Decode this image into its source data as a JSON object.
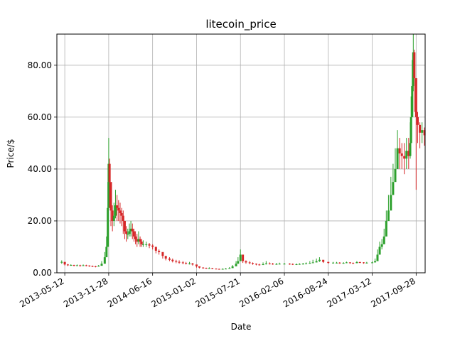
{
  "chart_data": {
    "type": "candlestick",
    "title": "litecoin_price",
    "xlabel": "Date",
    "ylabel": "Price/$",
    "ylim": [
      0,
      92
    ],
    "y_ticks": [
      0,
      20,
      40,
      60,
      80
    ],
    "y_tick_labels": [
      "0.00",
      "20.00",
      "40.00",
      "60.00",
      "80.00"
    ],
    "x_ticks": [
      "2013-05-12",
      "2013-11-28",
      "2014-06-16",
      "2015-01-02",
      "2015-07-21",
      "2016-02-06",
      "2016-08-24",
      "2017-03-12",
      "2017-09-28"
    ],
    "x_range": [
      "2013-04-06",
      "2017-11-08"
    ],
    "grid": true,
    "colors": {
      "up": "#2ca02c",
      "down": "#d62728"
    },
    "series": [
      {
        "x": [
          "2013-04-28",
          "2013-05-12",
          "2013-05-26",
          "2013-06-09",
          "2013-06-23",
          "2013-07-07",
          "2013-07-21",
          "2013-08-04",
          "2013-08-18",
          "2013-09-01",
          "2013-09-15",
          "2013-09-29",
          "2013-10-13",
          "2013-10-27",
          "2013-11-10",
          "2013-11-18",
          "2013-11-24",
          "2013-11-28",
          "2013-12-02",
          "2013-12-08",
          "2013-12-15",
          "2013-12-22",
          "2013-12-29",
          "2014-01-05",
          "2014-01-12",
          "2014-01-19",
          "2014-01-26",
          "2014-02-02",
          "2014-02-09",
          "2014-02-16",
          "2014-02-23",
          "2014-03-02",
          "2014-03-09",
          "2014-03-16",
          "2014-03-23",
          "2014-03-30",
          "2014-04-06",
          "2014-04-13",
          "2014-04-20",
          "2014-04-27",
          "2014-05-04",
          "2014-05-18",
          "2014-06-01",
          "2014-06-16",
          "2014-07-01",
          "2014-07-15",
          "2014-08-01",
          "2014-08-15",
          "2014-09-01",
          "2014-09-15",
          "2014-10-01",
          "2014-10-15",
          "2014-11-01",
          "2014-11-15",
          "2014-12-01",
          "2014-12-15",
          "2015-01-02",
          "2015-01-15",
          "2015-02-01",
          "2015-02-15",
          "2015-03-01",
          "2015-03-15",
          "2015-04-01",
          "2015-04-15",
          "2015-05-01",
          "2015-05-15",
          "2015-06-01",
          "2015-06-15",
          "2015-07-01",
          "2015-07-10",
          "2015-07-21",
          "2015-08-01",
          "2015-08-15",
          "2015-09-01",
          "2015-09-15",
          "2015-10-01",
          "2015-10-15",
          "2015-11-01",
          "2015-11-15",
          "2015-12-01",
          "2015-12-15",
          "2016-01-01",
          "2016-01-15",
          "2016-02-06",
          "2016-03-01",
          "2016-03-15",
          "2016-04-01",
          "2016-04-15",
          "2016-05-01",
          "2016-05-15",
          "2016-06-01",
          "2016-06-15",
          "2016-07-01",
          "2016-07-15",
          "2016-08-01",
          "2016-08-24",
          "2016-09-15",
          "2016-10-01",
          "2016-10-15",
          "2016-11-01",
          "2016-11-15",
          "2016-12-01",
          "2016-12-15",
          "2017-01-01",
          "2017-01-15",
          "2017-02-01",
          "2017-02-15",
          "2017-03-12",
          "2017-03-25",
          "2017-04-05",
          "2017-04-15",
          "2017-04-25",
          "2017-05-05",
          "2017-05-15",
          "2017-05-25",
          "2017-06-05",
          "2017-06-15",
          "2017-06-25",
          "2017-07-05",
          "2017-07-15",
          "2017-07-25",
          "2017-08-05",
          "2017-08-15",
          "2017-08-25",
          "2017-09-01",
          "2017-09-05",
          "2017-09-10",
          "2017-09-15",
          "2017-09-20",
          "2017-09-28",
          "2017-10-05",
          "2017-10-15",
          "2017-10-25",
          "2017-11-05"
        ],
        "close": [
          4.2,
          3.2,
          2.9,
          3.0,
          2.8,
          2.9,
          2.7,
          2.9,
          2.8,
          2.6,
          2.5,
          2.4,
          2.7,
          3.5,
          6.0,
          10.0,
          25.0,
          42.0,
          35.0,
          24.0,
          20.0,
          22.0,
          26.0,
          25.0,
          24.0,
          23.0,
          22.0,
          20.0,
          16.0,
          15.0,
          15.0,
          16.0,
          17.0,
          16.0,
          14.0,
          13.0,
          12.0,
          13.0,
          12.0,
          11.0,
          11.0,
          11.0,
          10.5,
          10.0,
          8.5,
          8.0,
          6.5,
          5.5,
          5.0,
          4.5,
          4.2,
          4.0,
          3.8,
          3.6,
          3.6,
          3.2,
          2.5,
          2.0,
          1.9,
          1.7,
          1.8,
          1.6,
          1.5,
          1.4,
          1.5,
          1.6,
          1.8,
          2.5,
          3.5,
          4.5,
          7.0,
          4.5,
          4.0,
          3.8,
          3.5,
          3.2,
          3.0,
          3.3,
          3.6,
          3.5,
          3.4,
          3.4,
          3.5,
          3.5,
          3.4,
          3.3,
          3.3,
          3.4,
          3.5,
          3.6,
          3.8,
          4.0,
          4.5,
          5.0,
          4.2,
          3.8,
          3.9,
          3.9,
          3.8,
          3.8,
          4.0,
          3.8,
          3.7,
          4.1,
          4.0,
          3.8,
          3.9,
          4.0,
          4.5,
          7.0,
          10.0,
          11.0,
          14.0,
          20.0,
          24.0,
          30.0,
          35.0,
          40.0,
          48.0,
          46.0,
          45.0,
          44.0,
          47.0,
          45.0,
          50.0,
          60.0,
          72.0,
          85.0,
          75.0,
          60.0,
          57.0,
          54.0,
          55.0,
          53.0
        ],
        "high": [
          4.8,
          3.8,
          3.4,
          3.3,
          3.1,
          3.2,
          3.1,
          3.2,
          3.1,
          2.9,
          2.8,
          2.7,
          3.0,
          4.5,
          8.0,
          14.0,
          35.0,
          52.0,
          44.0,
          32.0,
          26.0,
          27.0,
          32.0,
          30.0,
          28.0,
          27.0,
          25.0,
          24.0,
          19.0,
          18.0,
          17.0,
          19.0,
          20.0,
          19.0,
          17.0,
          16.0,
          15.0,
          16.0,
          14.0,
          13.0,
          12.5,
          12.0,
          11.5,
          11.0,
          9.5,
          9.0,
          7.5,
          6.5,
          6.0,
          5.5,
          5.0,
          4.8,
          4.5,
          4.2,
          4.2,
          3.8,
          3.0,
          2.4,
          2.2,
          2.0,
          2.1,
          1.9,
          1.7,
          1.6,
          1.7,
          1.8,
          2.2,
          3.0,
          4.5,
          6.0,
          9.0,
          5.5,
          4.8,
          4.5,
          4.0,
          3.6,
          3.5,
          4.0,
          4.5,
          4.0,
          3.8,
          3.8,
          3.9,
          3.8,
          3.7,
          3.6,
          3.6,
          3.7,
          3.8,
          4.0,
          4.5,
          5.0,
          5.5,
          6.0,
          4.8,
          4.2,
          4.2,
          4.2,
          4.1,
          4.1,
          4.3,
          4.1,
          4.0,
          4.5,
          4.3,
          4.1,
          4.2,
          4.4,
          5.5,
          9.0,
          12.0,
          13.0,
          17.0,
          24.0,
          30.0,
          37.0,
          42.0,
          48.0,
          55.0,
          52.0,
          50.0,
          50.0,
          52.0,
          52.0,
          58.0,
          68.0,
          82.0,
          92.0,
          86.0,
          70.0,
          62.0,
          58.0,
          58.0,
          56.0
        ],
        "low": [
          3.5,
          2.8,
          2.6,
          2.7,
          2.5,
          2.6,
          2.4,
          2.6,
          2.5,
          2.3,
          2.2,
          2.1,
          2.4,
          3.0,
          5.0,
          8.0,
          18.0,
          30.0,
          25.0,
          18.0,
          16.0,
          18.0,
          21.0,
          20.0,
          20.0,
          19.0,
          18.0,
          15.0,
          13.0,
          12.0,
          13.0,
          14.0,
          14.0,
          13.0,
          12.0,
          11.0,
          10.0,
          11.0,
          10.0,
          10.0,
          10.0,
          10.0,
          9.5,
          9.0,
          7.5,
          7.0,
          5.5,
          4.8,
          4.5,
          4.0,
          3.7,
          3.5,
          3.3,
          3.2,
          3.2,
          2.8,
          2.0,
          1.7,
          1.6,
          1.5,
          1.5,
          1.4,
          1.3,
          1.2,
          1.3,
          1.4,
          1.6,
          2.2,
          3.0,
          3.8,
          5.0,
          3.8,
          3.5,
          3.3,
          3.1,
          2.9,
          2.8,
          3.0,
          3.2,
          3.2,
          3.1,
          3.1,
          3.2,
          3.2,
          3.1,
          3.0,
          3.0,
          3.1,
          3.2,
          3.3,
          3.5,
          3.7,
          4.0,
          4.2,
          3.8,
          3.5,
          3.6,
          3.6,
          3.5,
          3.5,
          3.7,
          3.5,
          3.4,
          3.7,
          3.7,
          3.5,
          3.6,
          3.7,
          4.0,
          6.0,
          8.0,
          9.0,
          12.0,
          17.0,
          20.0,
          25.0,
          30.0,
          36.0,
          40.0,
          40.0,
          40.0,
          38.0,
          40.0,
          40.0,
          44.0,
          52.0,
          62.0,
          70.0,
          62.0,
          32.0,
          50.0,
          48.0,
          50.0,
          49.0
        ]
      }
    ]
  }
}
